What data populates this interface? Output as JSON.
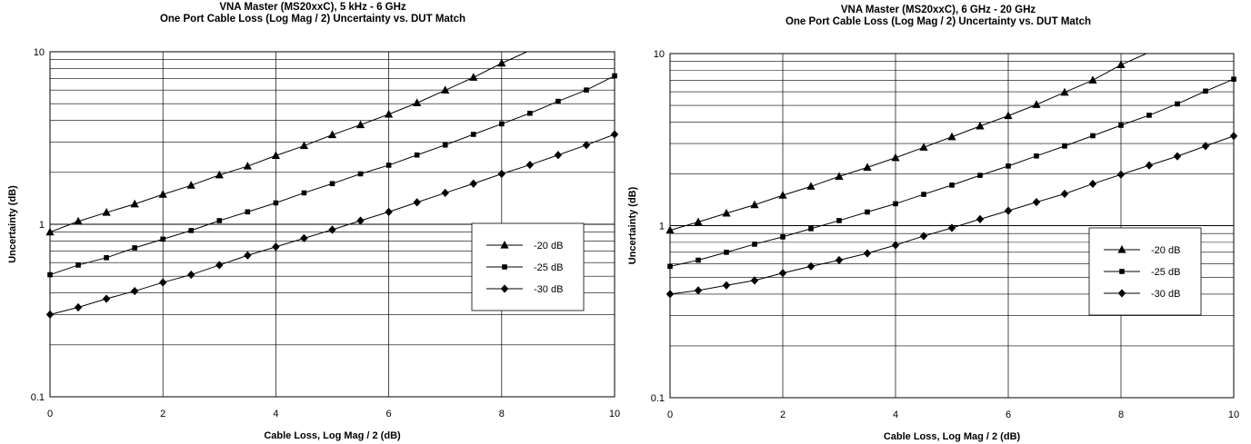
{
  "chart_data": [
    {
      "type": "line",
      "title_line1": "VNA Master (MS20xxC), 5 kHz - 6 GHz",
      "title_line2": "One Port Cable Loss (Log Mag / 2) Uncertainty vs. DUT Match",
      "xlabel": "Cable Loss, Log Mag / 2 (dB)",
      "ylabel": "Uncertainty (dB)",
      "xlim": [
        0,
        10
      ],
      "ylim": [
        0.1,
        10
      ],
      "yscale": "log",
      "grid": true,
      "legend_position": "center-right",
      "x_ticks": [
        "0",
        "2",
        "4",
        "6",
        "8",
        "10"
      ],
      "y_ticks": [
        "0.1",
        "1",
        "10"
      ],
      "x": [
        0,
        0.5,
        1,
        1.5,
        2,
        2.5,
        3,
        3.5,
        4,
        4.5,
        5,
        5.5,
        6,
        6.5,
        7,
        7.5,
        8,
        8.5,
        9,
        9.5,
        10
      ],
      "series": [
        {
          "name": "-20 dB",
          "marker": "triangle",
          "values": [
            0.9,
            1.04,
            1.17,
            1.31,
            1.49,
            1.68,
            1.93,
            2.17,
            2.5,
            2.85,
            3.3,
            3.77,
            4.34,
            5.05,
            5.98,
            7.1,
            8.58,
            null,
            null,
            null,
            null
          ]
        },
        {
          "name": "-25 dB",
          "marker": "square",
          "values": [
            0.51,
            0.58,
            0.64,
            0.73,
            0.82,
            0.92,
            1.05,
            1.18,
            1.33,
            1.52,
            1.72,
            1.96,
            2.2,
            2.52,
            2.88,
            3.32,
            3.82,
            4.4,
            5.16,
            6.0,
            7.25
          ]
        },
        {
          "name": "-30 dB",
          "marker": "diamond",
          "values": [
            0.3,
            0.33,
            0.37,
            0.41,
            0.46,
            0.51,
            0.58,
            0.66,
            0.74,
            0.83,
            0.93,
            1.05,
            1.18,
            1.34,
            1.52,
            1.72,
            1.96,
            2.21,
            2.52,
            2.88,
            3.32
          ]
        }
      ],
      "line_extension": {
        "series": "-20 dB",
        "x": [
          8,
          8.45
        ],
        "values": [
          8.58,
          10
        ]
      }
    },
    {
      "type": "line",
      "title_line1": "VNA Master (MS20xxC), 6 GHz - 20 GHz",
      "title_line2": "One Port Cable Loss (Log Mag / 2) Uncertainty vs. DUT Match",
      "xlabel": "Cable Loss, Log Mag / 2 (dB)",
      "ylabel": "Uncertainty (dB)",
      "xlim": [
        0,
        10
      ],
      "ylim": [
        0.1,
        10
      ],
      "yscale": "log",
      "grid": true,
      "legend_position": "center-right",
      "x_ticks": [
        "0",
        "2",
        "4",
        "6",
        "8",
        "10"
      ],
      "y_ticks": [
        "0.1",
        "1",
        "10"
      ],
      "x": [
        0,
        0.5,
        1,
        1.5,
        2,
        2.5,
        3,
        3.5,
        4,
        4.5,
        5,
        5.5,
        6,
        6.5,
        7,
        7.5,
        8,
        8.5,
        9,
        9.5,
        10
      ],
      "series": [
        {
          "name": "-20 dB",
          "marker": "triangle",
          "values": [
            0.94,
            1.05,
            1.18,
            1.32,
            1.5,
            1.69,
            1.93,
            2.18,
            2.48,
            2.85,
            3.28,
            3.79,
            4.35,
            5.05,
            5.95,
            7.0,
            8.6,
            null,
            null,
            null,
            null
          ]
        },
        {
          "name": "-25 dB",
          "marker": "square",
          "values": [
            0.58,
            0.63,
            0.7,
            0.78,
            0.86,
            0.96,
            1.07,
            1.2,
            1.34,
            1.52,
            1.72,
            1.96,
            2.22,
            2.54,
            2.9,
            3.33,
            3.83,
            4.38,
            5.1,
            6.05,
            7.1
          ]
        },
        {
          "name": "-30 dB",
          "marker": "diamond",
          "values": [
            0.4,
            0.42,
            0.45,
            0.48,
            0.53,
            0.58,
            0.63,
            0.69,
            0.77,
            0.87,
            0.97,
            1.09,
            1.22,
            1.37,
            1.53,
            1.75,
            1.98,
            2.24,
            2.53,
            2.9,
            3.32
          ]
        }
      ],
      "line_extension": {
        "series": "-20 dB",
        "x": [
          8,
          8.45
        ],
        "values": [
          8.6,
          10
        ]
      }
    }
  ]
}
